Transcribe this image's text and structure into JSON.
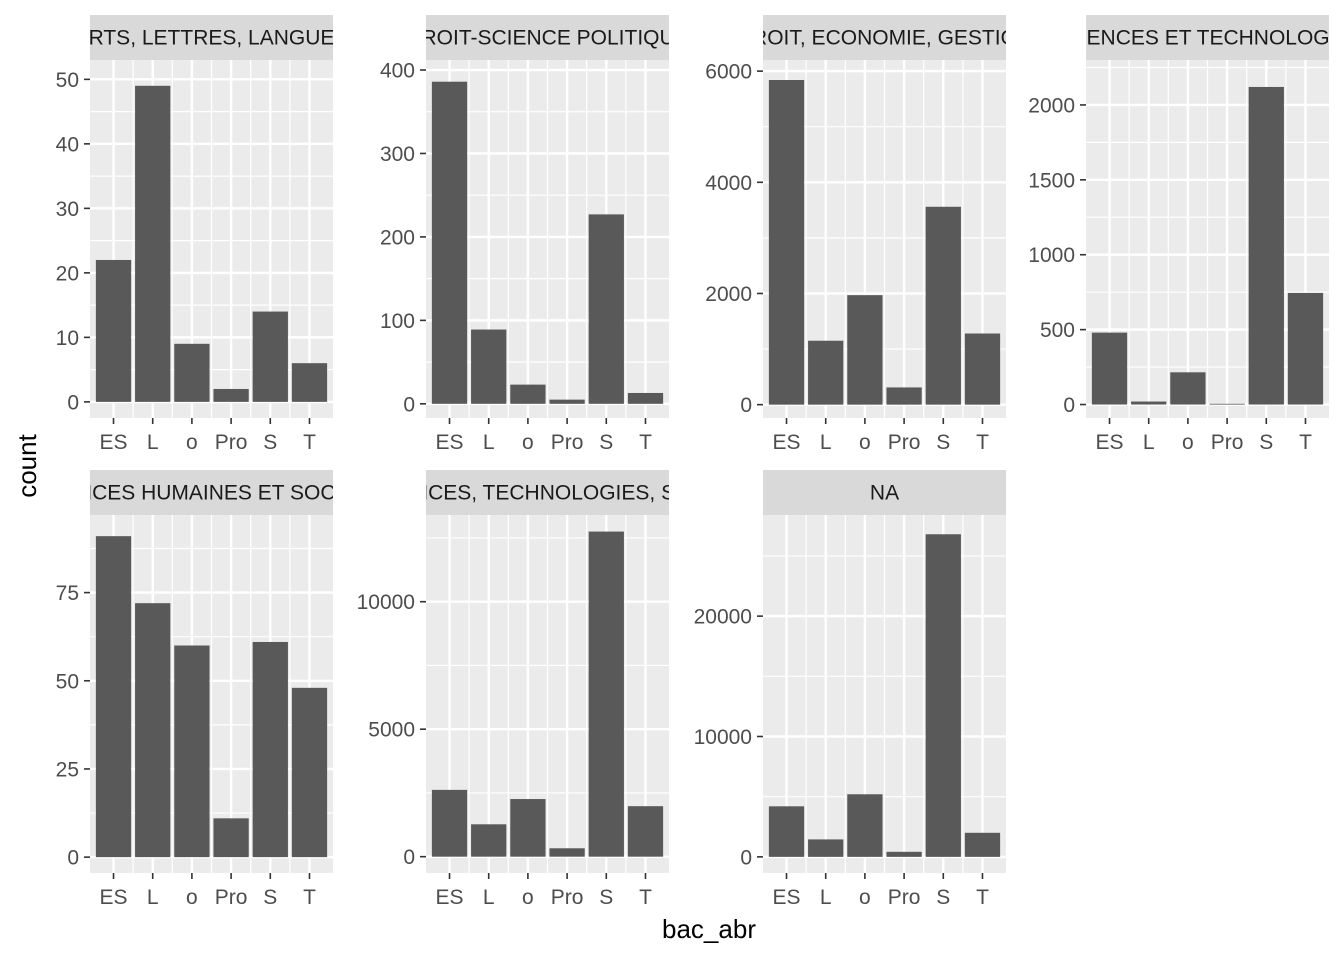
{
  "chart_data": {
    "type": "bar",
    "layout": "facet_wrap",
    "xlabel": "bac_abr",
    "ylabel": "count",
    "categories": [
      "ES",
      "L",
      "o",
      "Pro",
      "S",
      "T"
    ],
    "colors": {
      "panel_bg": "#ebebeb",
      "grid": "#ffffff",
      "bar": "#595959",
      "strip_bg": "#d9d9d9",
      "tick": "#333333"
    },
    "panels": [
      {
        "strip": "ARTS, LETTRES, LANGUES",
        "values": [
          22,
          49,
          9,
          2,
          14,
          6
        ],
        "ylim": [
          -2.5,
          53
        ],
        "yticks": [
          0,
          10,
          20,
          30,
          40,
          50
        ],
        "yminor": [
          5,
          15,
          25,
          35,
          45
        ]
      },
      {
        "strip": "DROIT-SCIENCE POLITIQUE",
        "values": [
          386,
          89,
          23,
          5,
          227,
          13
        ],
        "ylim": [
          -17,
          412
        ],
        "yticks": [
          0,
          100,
          200,
          300,
          400
        ],
        "yminor": [
          50,
          150,
          250,
          350
        ]
      },
      {
        "strip": "DROIT, ECONOMIE, GESTION",
        "values": [
          5840,
          1150,
          1970,
          310,
          3560,
          1280
        ],
        "ylim": [
          -240,
          6200
        ],
        "yticks": [
          0,
          2000,
          4000,
          6000
        ],
        "yminor": [
          1000,
          3000,
          5000
        ]
      },
      {
        "strip": "SCIENCES ET TECHNOLOGIES",
        "values": [
          480,
          20,
          215,
          5,
          2120,
          745
        ],
        "ylim": [
          -90,
          2300
        ],
        "yticks": [
          0,
          500,
          1000,
          1500,
          2000
        ],
        "yminor": [
          250,
          750,
          1250,
          1750,
          2250
        ]
      },
      {
        "strip": "SCIENCES HUMAINES ET SOCIALES",
        "values": [
          91,
          72,
          60,
          11,
          61,
          48
        ],
        "ylim": [
          -4.5,
          97
        ],
        "yticks": [
          0,
          25,
          50,
          75
        ],
        "yminor": [
          12.5,
          37.5,
          62.5,
          87.5
        ]
      },
      {
        "strip": "SCIENCES, TECHNOLOGIES, SANTE",
        "values": [
          2620,
          1270,
          2260,
          330,
          12750,
          1980
        ],
        "ylim": [
          -640,
          13400
        ],
        "yticks": [
          0,
          5000,
          10000
        ],
        "yminor": [
          2500,
          7500,
          12500
        ]
      },
      {
        "strip": "NA",
        "values": [
          4200,
          1450,
          5200,
          420,
          26800,
          2000
        ],
        "ylim": [
          -1340,
          28400
        ],
        "yticks": [
          0,
          10000,
          20000
        ],
        "yminor": [
          5000,
          15000,
          25000
        ]
      }
    ]
  }
}
